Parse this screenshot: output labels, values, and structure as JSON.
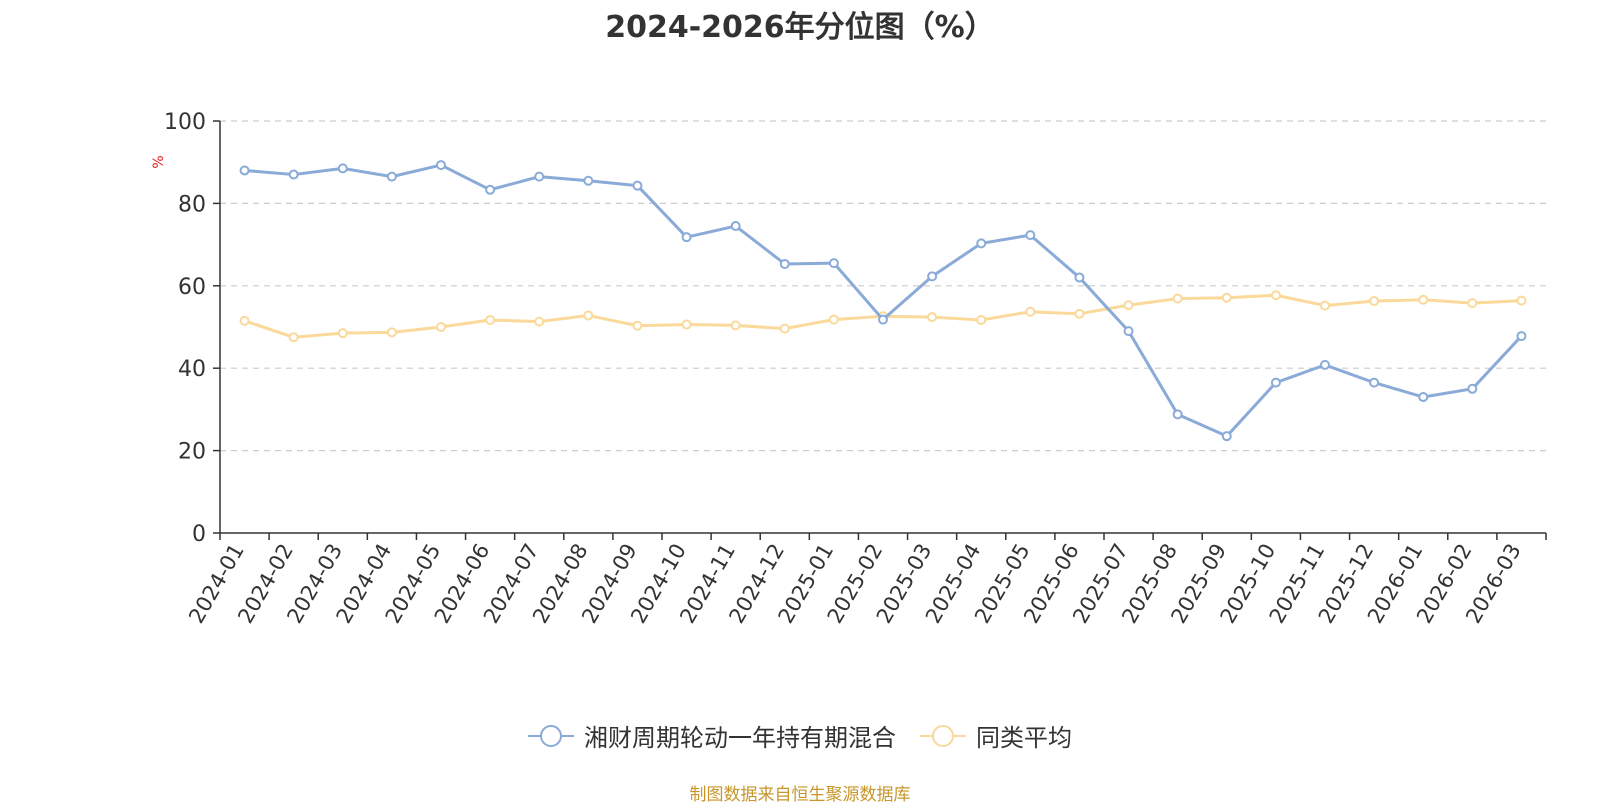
{
  "chart_data": {
    "type": "line",
    "title": "2024-2026年分位图（%）",
    "ylabel": "%",
    "xlabel": "",
    "ylim": [
      0,
      100
    ],
    "yticks": [
      0,
      20,
      40,
      60,
      80,
      100
    ],
    "grid": true,
    "legend_position": "bottom-center",
    "categories": [
      "2024-01",
      "2024-02",
      "2024-03",
      "2024-04",
      "2024-05",
      "2024-06",
      "2024-07",
      "2024-08",
      "2024-09",
      "2024-10",
      "2024-11",
      "2024-12",
      "2025-01",
      "2025-02",
      "2025-03",
      "2025-04",
      "2025-05",
      "2025-06",
      "2025-07",
      "2025-08",
      "2025-09",
      "2025-10",
      "2025-11",
      "2025-12",
      "2026-01",
      "2026-02",
      "2026-03"
    ],
    "series": [
      {
        "name": "湘财周期轮动一年持有期混合",
        "color": "#8aaad8",
        "values": [
          88.0,
          87.0,
          88.5,
          86.5,
          89.3,
          83.3,
          86.5,
          85.5,
          84.3,
          71.8,
          74.5,
          65.3,
          65.5,
          51.8,
          62.3,
          70.3,
          72.3,
          62.0,
          49.0,
          28.8,
          23.5,
          36.5,
          40.8,
          36.5,
          33.0,
          35.0,
          47.8
        ]
      },
      {
        "name": "同类平均",
        "color": "#fad99a",
        "values": [
          51.5,
          47.5,
          48.5,
          48.7,
          50.0,
          51.7,
          51.3,
          52.8,
          50.3,
          50.6,
          50.4,
          49.6,
          51.8,
          52.6,
          52.4,
          51.7,
          53.7,
          53.2,
          55.3,
          56.9,
          57.1,
          57.7,
          55.2,
          56.3,
          56.6,
          55.8,
          56.4
        ]
      }
    ]
  },
  "source_note": "制图数据来自恒生聚源数据库"
}
